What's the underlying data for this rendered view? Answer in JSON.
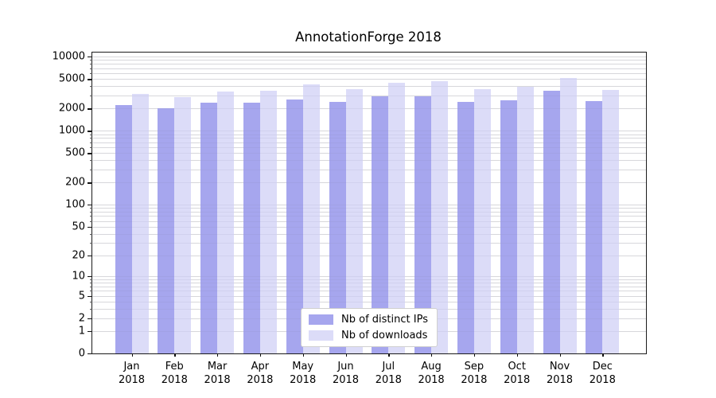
{
  "figure": {
    "title": "AnnotationForge 2018"
  },
  "chart_data": {
    "type": "bar",
    "title": "AnnotationForge 2018",
    "xlabel": "",
    "ylabel": "",
    "yscale": "log1p",
    "ylim": [
      0,
      11340
    ],
    "yticks": [
      10000,
      5000,
      2000,
      1000,
      500,
      200,
      100,
      50,
      20,
      10,
      5,
      2,
      1,
      0
    ],
    "grid": "horizontal-minor-log",
    "legend_position": "lower center",
    "categories": [
      "Jan",
      "Feb",
      "Mar",
      "Apr",
      "May",
      "Jun",
      "Jul",
      "Aug",
      "Sep",
      "Oct",
      "Nov",
      "Dec"
    ],
    "year": "2018",
    "series": [
      {
        "name": "Nb of distinct IPs",
        "color": "#a6a6ee",
        "values": [
          2200,
          2000,
          2400,
          2380,
          2620,
          2440,
          2900,
          2920,
          2460,
          2600,
          3470,
          2540
        ]
      },
      {
        "name": "Nb of downloads",
        "color": "#dcdcf8",
        "values": [
          3150,
          2850,
          3350,
          3500,
          4200,
          3650,
          4400,
          4650,
          3680,
          3930,
          5200,
          3560
        ]
      }
    ]
  }
}
